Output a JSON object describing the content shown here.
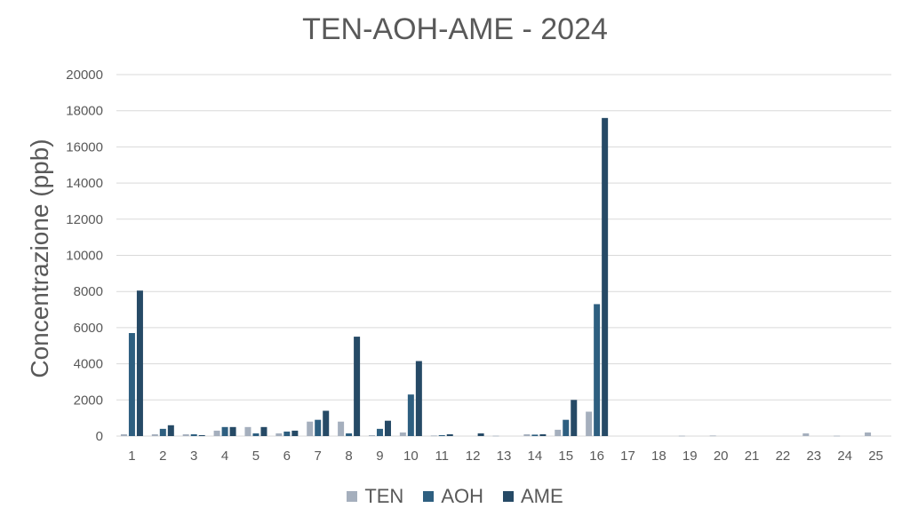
{
  "chart_data": {
    "type": "bar",
    "title": "TEN-AOH-AME - 2024",
    "xlabel": "",
    "ylabel": "Concentrazione (ppb)",
    "ylim": [
      0,
      20000
    ],
    "yticks": [
      0,
      2000,
      4000,
      6000,
      8000,
      10000,
      12000,
      14000,
      16000,
      18000,
      20000
    ],
    "grid": true,
    "legend_position": "bottom",
    "categories": [
      "1",
      "2",
      "3",
      "4",
      "5",
      "6",
      "7",
      "8",
      "9",
      "10",
      "11",
      "12",
      "13",
      "14",
      "15",
      "16",
      "17",
      "18",
      "19",
      "20",
      "21",
      "22",
      "23",
      "24",
      "25"
    ],
    "series": [
      {
        "name": "TEN",
        "color": "#a5afbd",
        "values": [
          100,
          100,
          100,
          300,
          500,
          150,
          800,
          800,
          50,
          200,
          30,
          0,
          20,
          100,
          350,
          1350,
          0,
          0,
          20,
          30,
          0,
          0,
          150,
          20,
          200
        ]
      },
      {
        "name": "AOH",
        "color": "#2e5f80",
        "values": [
          5700,
          400,
          100,
          500,
          150,
          250,
          900,
          150,
          400,
          2300,
          50,
          0,
          0,
          80,
          900,
          7300,
          0,
          0,
          0,
          0,
          0,
          0,
          0,
          0,
          0
        ]
      },
      {
        "name": "AME",
        "color": "#264a66",
        "values": [
          8050,
          600,
          50,
          500,
          500,
          300,
          1400,
          5500,
          850,
          4150,
          100,
          150,
          0,
          100,
          2000,
          17600,
          0,
          0,
          0,
          0,
          0,
          0,
          0,
          0,
          0
        ]
      }
    ]
  }
}
